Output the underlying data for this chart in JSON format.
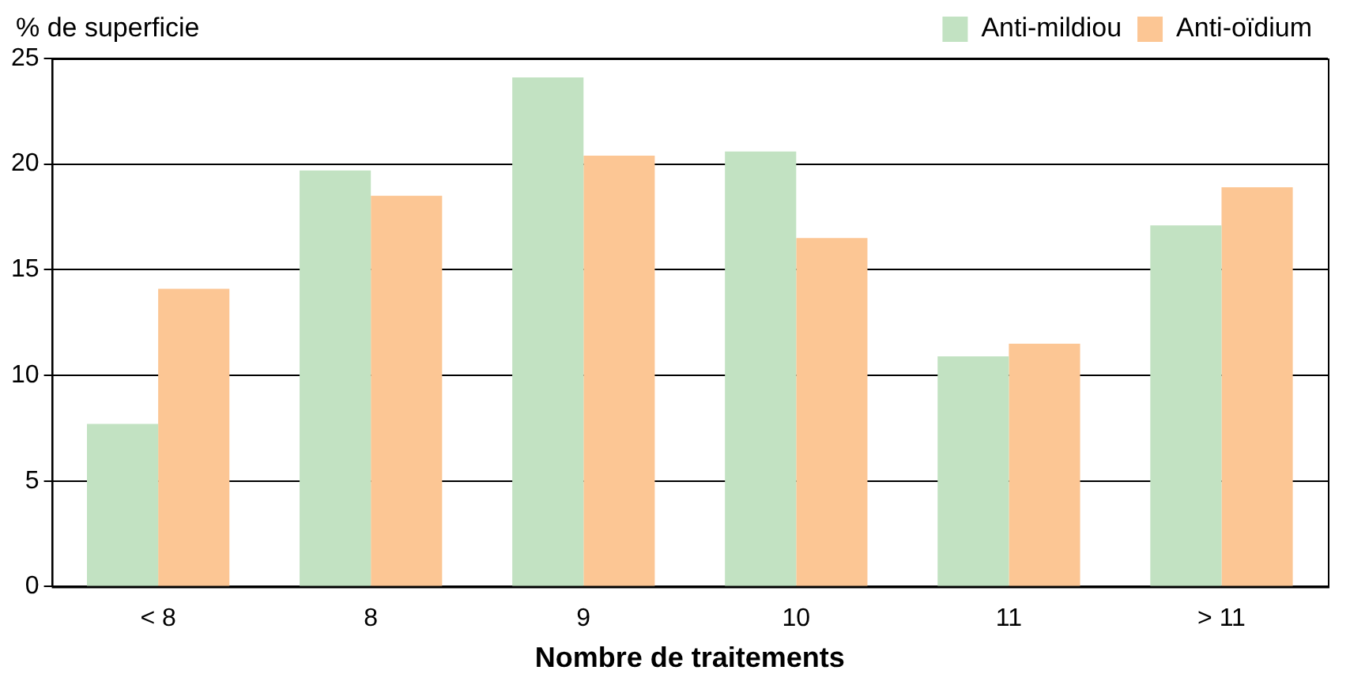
{
  "chart_data": {
    "type": "bar",
    "ylabel": "% de superficie",
    "xlabel": "Nombre de traitements",
    "categories": [
      "< 8",
      "8",
      "9",
      "10",
      "11",
      "> 11"
    ],
    "series": [
      {
        "name": "Anti-mildiou",
        "color": "#c2e2c2",
        "values": [
          7.7,
          19.7,
          24.1,
          20.6,
          10.9,
          17.1
        ]
      },
      {
        "name": "Anti-oïdium",
        "color": "#fcc694",
        "values": [
          14.1,
          18.5,
          20.4,
          16.5,
          11.5,
          18.9
        ]
      }
    ],
    "ylim": [
      0,
      25
    ],
    "yticks": [
      0,
      5,
      10,
      15,
      20,
      25
    ],
    "grid": "y",
    "legend": "top right"
  }
}
